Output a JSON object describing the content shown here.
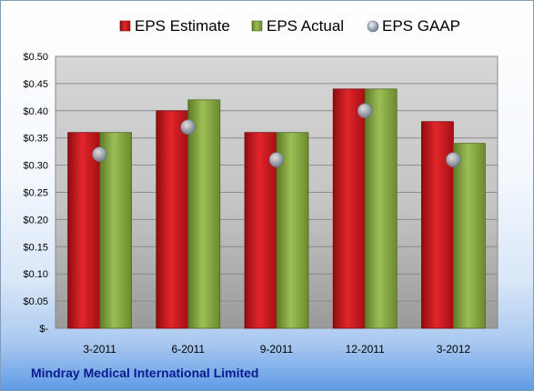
{
  "company_name": "Mindray Medical International Limited",
  "chart_data": {
    "type": "bar",
    "categories": [
      "3-2011",
      "6-2011",
      "9-2011",
      "12-2011",
      "3-2012"
    ],
    "series": [
      {
        "name": "EPS Estimate",
        "type": "bar",
        "color": "#c0161b",
        "values": [
          0.36,
          0.4,
          0.36,
          0.44,
          0.38
        ]
      },
      {
        "name": "EPS Actual",
        "type": "bar",
        "color": "#7ea03c",
        "values": [
          0.36,
          0.42,
          0.36,
          0.44,
          0.34
        ]
      },
      {
        "name": "EPS GAAP",
        "type": "scatter",
        "color": "#9aa6b8",
        "values": [
          0.32,
          0.37,
          0.31,
          0.4,
          0.31
        ]
      }
    ],
    "ylim": [
      0,
      0.5
    ],
    "yticks": [
      0,
      0.05,
      0.1,
      0.15,
      0.2,
      0.25,
      0.3,
      0.35,
      0.4,
      0.45,
      0.5
    ],
    "ytick_labels": [
      "$-",
      "$0.05",
      "$0.10",
      "$0.15",
      "$0.20",
      "$0.25",
      "$0.30",
      "$0.35",
      "$0.40",
      "$0.45",
      "$0.50"
    ],
    "grid": true,
    "legend_position": "top"
  }
}
